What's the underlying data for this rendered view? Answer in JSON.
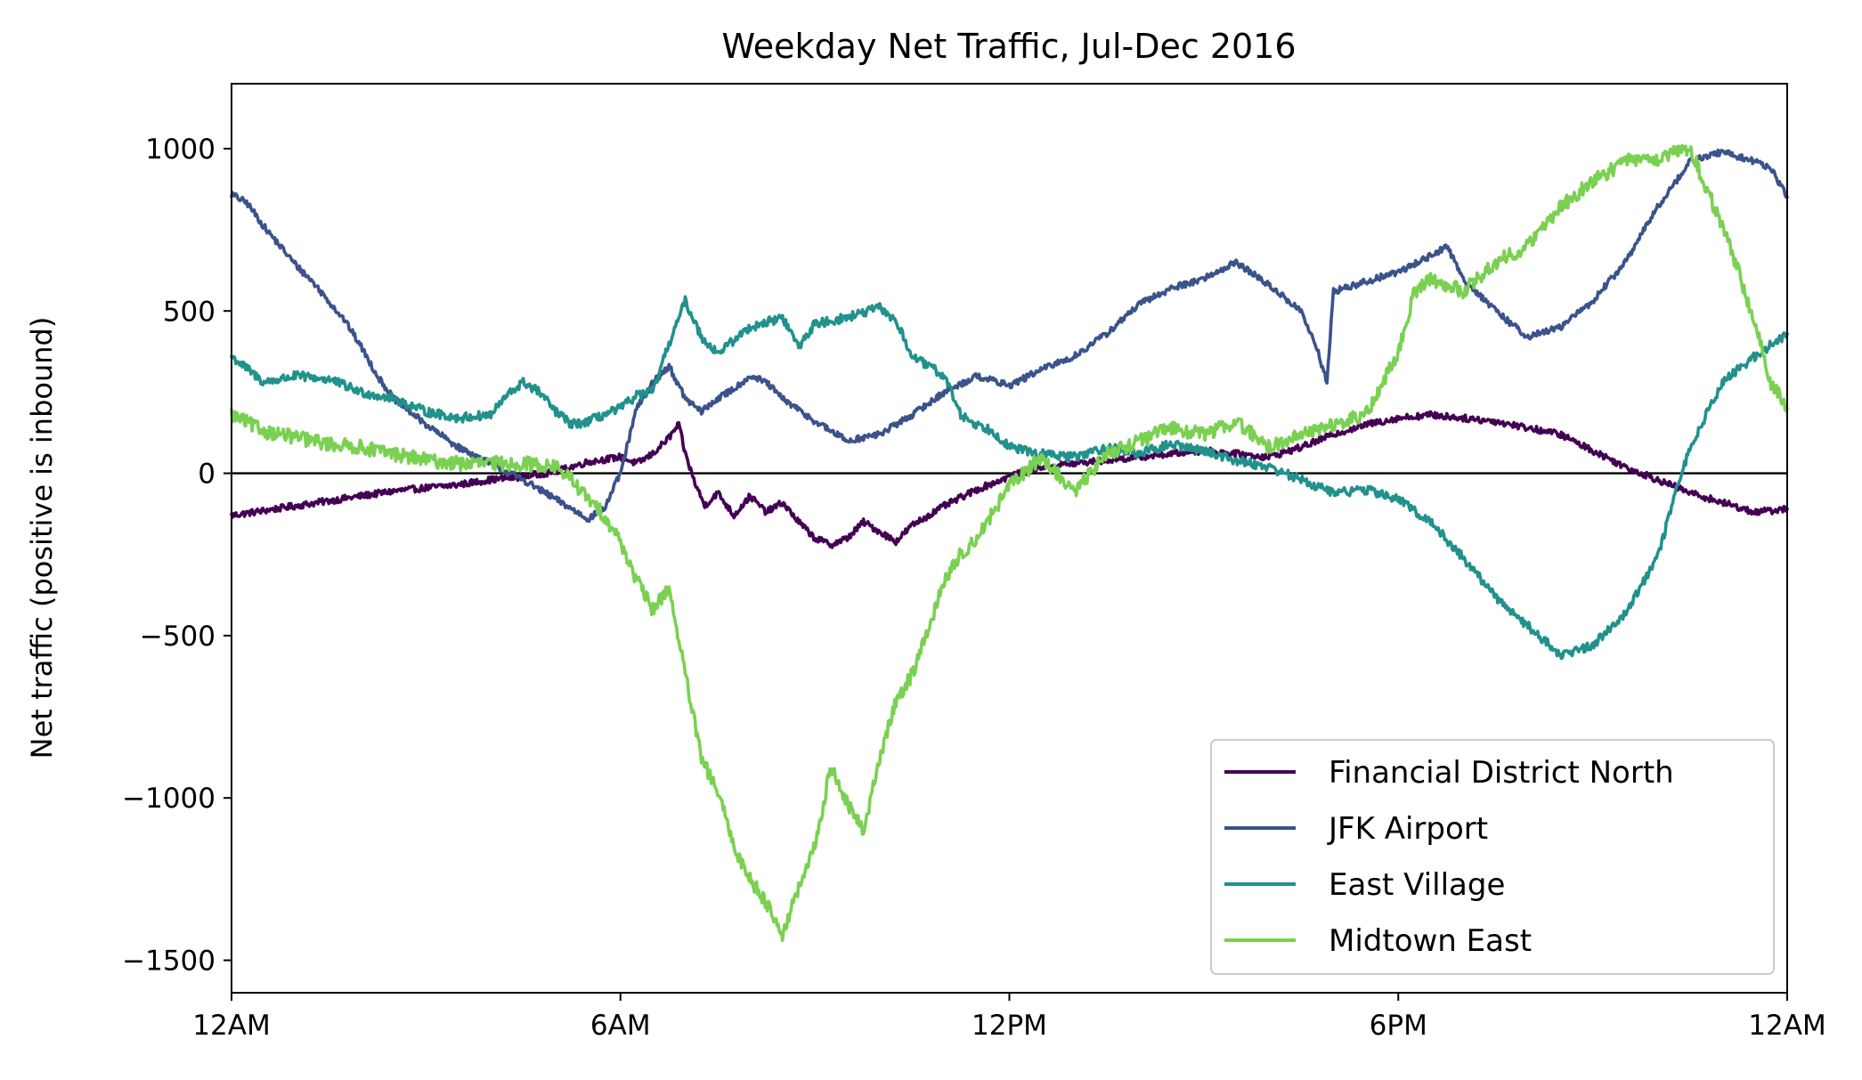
{
  "chart_data": {
    "type": "line",
    "title": "Weekday Net Traffic, Jul-Dec 2016",
    "xlabel": "",
    "ylabel": "Net traffic (positive is inbound)",
    "x_unit": "hours since midnight",
    "xlim": [
      0,
      24
    ],
    "ylim": [
      -1600,
      1200
    ],
    "xticks": [
      {
        "value": 0,
        "label": "12AM"
      },
      {
        "value": 6,
        "label": "6AM"
      },
      {
        "value": 12,
        "label": "12PM"
      },
      {
        "value": 18,
        "label": "6PM"
      },
      {
        "value": 24,
        "label": "12AM"
      }
    ],
    "yticks": [
      {
        "value": 1000,
        "label": "1000"
      },
      {
        "value": 500,
        "label": "500"
      },
      {
        "value": 0,
        "label": "0"
      },
      {
        "value": -500,
        "label": "−500"
      },
      {
        "value": -1000,
        "label": "−1000"
      },
      {
        "value": -1500,
        "label": "−1500"
      }
    ],
    "zero_line": true,
    "grid": false,
    "legend_position": "lower-right",
    "series": [
      {
        "name": "Financial District North",
        "color": "#440154",
        "points": [
          [
            0,
            -130
          ],
          [
            0.5,
            -115
          ],
          [
            1,
            -100
          ],
          [
            1.5,
            -85
          ],
          [
            2,
            -70
          ],
          [
            2.5,
            -55
          ],
          [
            3,
            -45
          ],
          [
            3.5,
            -35
          ],
          [
            4,
            -20
          ],
          [
            4.5,
            -10
          ],
          [
            5,
            5
          ],
          [
            5.5,
            35
          ],
          [
            6,
            50
          ],
          [
            6.25,
            30
          ],
          [
            6.5,
            60
          ],
          [
            6.75,
            110
          ],
          [
            6.9,
            150
          ],
          [
            7,
            60
          ],
          [
            7.15,
            -30
          ],
          [
            7.3,
            -100
          ],
          [
            7.5,
            -60
          ],
          [
            7.75,
            -130
          ],
          [
            8,
            -70
          ],
          [
            8.25,
            -120
          ],
          [
            8.5,
            -90
          ],
          [
            8.75,
            -150
          ],
          [
            9,
            -200
          ],
          [
            9.25,
            -220
          ],
          [
            9.5,
            -200
          ],
          [
            9.75,
            -150
          ],
          [
            10,
            -180
          ],
          [
            10.25,
            -210
          ],
          [
            10.5,
            -160
          ],
          [
            11,
            -100
          ],
          [
            11.5,
            -50
          ],
          [
            12,
            -10
          ],
          [
            12.5,
            20
          ],
          [
            13,
            30
          ],
          [
            13.5,
            40
          ],
          [
            14,
            50
          ],
          [
            14.5,
            60
          ],
          [
            15,
            70
          ],
          [
            15.5,
            60
          ],
          [
            16,
            50
          ],
          [
            16.5,
            80
          ],
          [
            17,
            120
          ],
          [
            17.5,
            150
          ],
          [
            18,
            170
          ],
          [
            18.5,
            180
          ],
          [
            19,
            170
          ],
          [
            19.5,
            160
          ],
          [
            20,
            140
          ],
          [
            20.5,
            120
          ],
          [
            21,
            70
          ],
          [
            21.5,
            20
          ],
          [
            22,
            -20
          ],
          [
            22.5,
            -60
          ],
          [
            23,
            -90
          ],
          [
            23.5,
            -120
          ],
          [
            24,
            -110
          ]
        ]
      },
      {
        "name": "JFK Airport",
        "color": "#3b528b",
        "points": [
          [
            0,
            860
          ],
          [
            0.25,
            830
          ],
          [
            0.5,
            760
          ],
          [
            0.75,
            700
          ],
          [
            1,
            640
          ],
          [
            1.25,
            590
          ],
          [
            1.5,
            530
          ],
          [
            1.75,
            470
          ],
          [
            2,
            390
          ],
          [
            2.25,
            300
          ],
          [
            2.5,
            230
          ],
          [
            3,
            150
          ],
          [
            3.5,
            80
          ],
          [
            4,
            30
          ],
          [
            4.5,
            -20
          ],
          [
            5,
            -80
          ],
          [
            5.5,
            -140
          ],
          [
            5.75,
            -110
          ],
          [
            6,
            0
          ],
          [
            6.25,
            200
          ],
          [
            6.5,
            280
          ],
          [
            6.75,
            330
          ],
          [
            7,
            230
          ],
          [
            7.25,
            190
          ],
          [
            7.5,
            230
          ],
          [
            7.75,
            260
          ],
          [
            8,
            300
          ],
          [
            8.25,
            280
          ],
          [
            8.5,
            230
          ],
          [
            9,
            160
          ],
          [
            9.5,
            100
          ],
          [
            10,
            120
          ],
          [
            10.5,
            180
          ],
          [
            11,
            250
          ],
          [
            11.5,
            300
          ],
          [
            12,
            270
          ],
          [
            12.5,
            320
          ],
          [
            13,
            360
          ],
          [
            13.5,
            430
          ],
          [
            14,
            520
          ],
          [
            14.5,
            570
          ],
          [
            15,
            600
          ],
          [
            15.5,
            650
          ],
          [
            16,
            580
          ],
          [
            16.5,
            500
          ],
          [
            16.75,
            380
          ],
          [
            16.9,
            280
          ],
          [
            17,
            560
          ],
          [
            17.5,
            590
          ],
          [
            18,
            620
          ],
          [
            18.5,
            670
          ],
          [
            18.75,
            700
          ],
          [
            19,
            600
          ],
          [
            19.5,
            500
          ],
          [
            20,
            420
          ],
          [
            20.5,
            450
          ],
          [
            21,
            530
          ],
          [
            21.5,
            650
          ],
          [
            22,
            820
          ],
          [
            22.5,
            960
          ],
          [
            23,
            990
          ],
          [
            23.5,
            960
          ],
          [
            23.75,
            940
          ],
          [
            24,
            850
          ]
        ]
      },
      {
        "name": "East Village",
        "color": "#21918c",
        "points": [
          [
            0,
            360
          ],
          [
            0.5,
            280
          ],
          [
            1,
            300
          ],
          [
            1.5,
            290
          ],
          [
            2,
            250
          ],
          [
            2.5,
            230
          ],
          [
            3,
            190
          ],
          [
            3.5,
            170
          ],
          [
            4,
            180
          ],
          [
            4.25,
            240
          ],
          [
            4.5,
            280
          ],
          [
            4.75,
            250
          ],
          [
            5,
            190
          ],
          [
            5.25,
            150
          ],
          [
            5.5,
            160
          ],
          [
            6,
            200
          ],
          [
            6.25,
            240
          ],
          [
            6.5,
            250
          ],
          [
            6.75,
            400
          ],
          [
            7,
            530
          ],
          [
            7.25,
            420
          ],
          [
            7.5,
            370
          ],
          [
            8,
            450
          ],
          [
            8.5,
            480
          ],
          [
            8.75,
            390
          ],
          [
            9,
            460
          ],
          [
            9.5,
            480
          ],
          [
            10,
            510
          ],
          [
            10.25,
            470
          ],
          [
            10.5,
            360
          ],
          [
            11,
            300
          ],
          [
            11.25,
            180
          ],
          [
            11.5,
            150
          ],
          [
            11.75,
            130
          ],
          [
            12,
            80
          ],
          [
            12.5,
            60
          ],
          [
            13,
            50
          ],
          [
            13.5,
            80
          ],
          [
            14,
            60
          ],
          [
            14.5,
            90
          ],
          [
            15,
            70
          ],
          [
            15.5,
            40
          ],
          [
            16,
            20
          ],
          [
            16.5,
            -20
          ],
          [
            17,
            -60
          ],
          [
            17.5,
            -50
          ],
          [
            18,
            -80
          ],
          [
            18.5,
            -150
          ],
          [
            19,
            -260
          ],
          [
            19.5,
            -380
          ],
          [
            20,
            -470
          ],
          [
            20.5,
            -560
          ],
          [
            21,
            -530
          ],
          [
            21.5,
            -430
          ],
          [
            22,
            -260
          ],
          [
            22.25,
            -80
          ],
          [
            22.5,
            80
          ],
          [
            23,
            280
          ],
          [
            23.5,
            360
          ],
          [
            24,
            430
          ]
        ]
      },
      {
        "name": "Midtown East",
        "color": "#7ad151",
        "points": [
          [
            0,
            180
          ],
          [
            0.5,
            130
          ],
          [
            1,
            110
          ],
          [
            1.5,
            90
          ],
          [
            2,
            80
          ],
          [
            2.5,
            60
          ],
          [
            3,
            40
          ],
          [
            3.5,
            30
          ],
          [
            4,
            30
          ],
          [
            4.5,
            30
          ],
          [
            5,
            20
          ],
          [
            5.25,
            -20
          ],
          [
            5.5,
            -80
          ],
          [
            5.75,
            -130
          ],
          [
            6,
            -210
          ],
          [
            6.25,
            -330
          ],
          [
            6.5,
            -420
          ],
          [
            6.75,
            -350
          ],
          [
            7,
            -620
          ],
          [
            7.25,
            -880
          ],
          [
            7.5,
            -980
          ],
          [
            7.75,
            -1150
          ],
          [
            8,
            -1250
          ],
          [
            8.25,
            -1320
          ],
          [
            8.5,
            -1420
          ],
          [
            8.75,
            -1280
          ],
          [
            9,
            -1150
          ],
          [
            9.25,
            -900
          ],
          [
            9.5,
            -1020
          ],
          [
            9.75,
            -1100
          ],
          [
            10,
            -880
          ],
          [
            10.25,
            -700
          ],
          [
            10.5,
            -620
          ],
          [
            10.75,
            -480
          ],
          [
            11,
            -330
          ],
          [
            11.25,
            -250
          ],
          [
            11.5,
            -200
          ],
          [
            12,
            -40
          ],
          [
            12.5,
            50
          ],
          [
            13,
            -60
          ],
          [
            13.5,
            60
          ],
          [
            14,
            100
          ],
          [
            14.5,
            140
          ],
          [
            15,
            120
          ],
          [
            15.5,
            160
          ],
          [
            16,
            80
          ],
          [
            16.5,
            120
          ],
          [
            17,
            150
          ],
          [
            17.5,
            180
          ],
          [
            18,
            370
          ],
          [
            18.25,
            560
          ],
          [
            18.5,
            600
          ],
          [
            19,
            560
          ],
          [
            19.5,
            650
          ],
          [
            20,
            700
          ],
          [
            20.5,
            820
          ],
          [
            21,
            900
          ],
          [
            21.5,
            960
          ],
          [
            22,
            970
          ],
          [
            22.5,
            1000
          ],
          [
            23,
            760
          ],
          [
            23.25,
            620
          ],
          [
            23.5,
            460
          ],
          [
            23.75,
            280
          ],
          [
            24,
            200
          ]
        ]
      }
    ]
  }
}
